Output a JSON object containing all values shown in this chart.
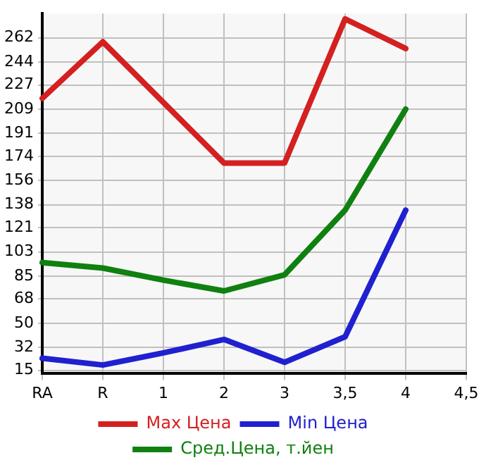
{
  "chart_data": {
    "type": "line",
    "categories": [
      "RA",
      "R",
      "1",
      "2",
      "3",
      "3,5",
      "4",
      "4,5"
    ],
    "series": [
      {
        "name": "Max Цена",
        "color": "#d42020",
        "values": [
          217,
          259,
          214,
          169,
          169,
          276,
          254,
          null
        ]
      },
      {
        "name": "Min Цена",
        "color": "#2020d0",
        "values": [
          24,
          19,
          28,
          38,
          21,
          40,
          134,
          null
        ]
      },
      {
        "name": "Сред.Цена, т.йен",
        "color": "#108010",
        "values": [
          95,
          91,
          82,
          74,
          86,
          134,
          209,
          null
        ]
      }
    ],
    "ylim": [
      13,
      280
    ],
    "yticks": [
      15,
      32,
      50,
      68,
      85,
      103,
      121,
      138,
      156,
      174,
      191,
      209,
      227,
      244,
      262
    ],
    "grid": true,
    "legend": "bottom",
    "marker": "none",
    "line_style": "solid"
  }
}
